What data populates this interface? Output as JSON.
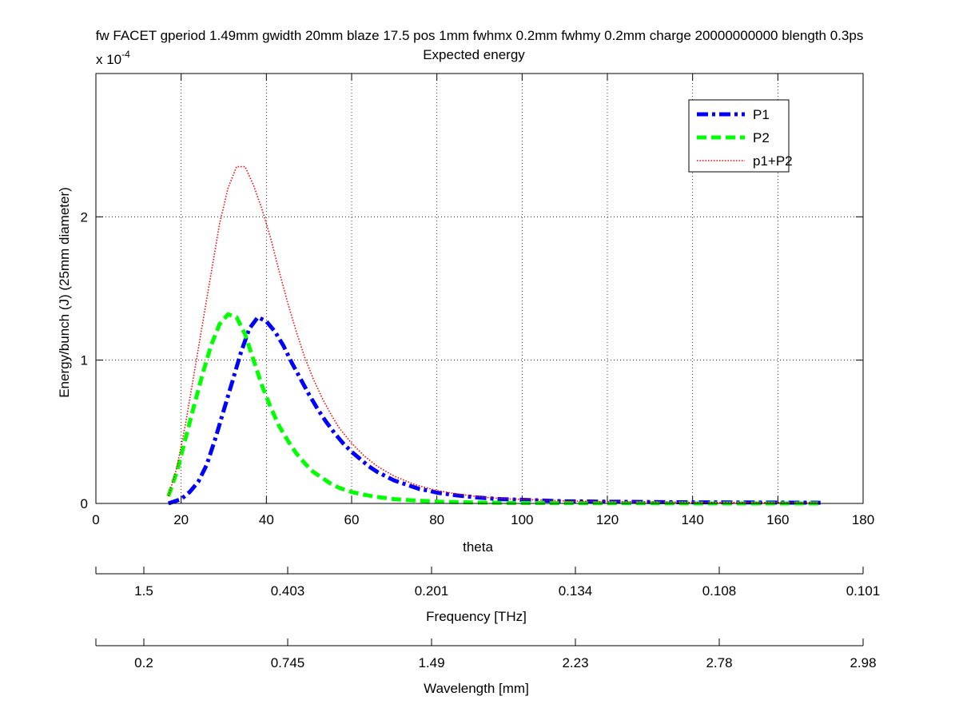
{
  "chart_data": {
    "type": "line",
    "title": "fw FACET gperiod 1.49mm gwidth 20mm blaze 17.5 pos 1mm fwhmx 0.2mm fwhmy 0.2mm charge 20000000000 blength 0.3ps",
    "subtitle": "Expected energy",
    "xlabel": "theta",
    "ylabel": "Energy/bunch (J) (25mm diameter)",
    "y_exponent_label": "x 10",
    "y_exponent_power": "-4",
    "xlim": [
      0,
      180
    ],
    "ylim": [
      0,
      3.0
    ],
    "y_scale_factor": 0.0001,
    "grid": true,
    "grid_style": "dotted",
    "legend_position": "top-right",
    "x_ticks": [
      0,
      20,
      40,
      60,
      80,
      100,
      120,
      140,
      160,
      180
    ],
    "y_ticks": [
      0,
      1,
      2
    ],
    "series": [
      {
        "name": "P1",
        "color": "#0000ff",
        "style": "dashdot",
        "x": [
          17,
          20,
          22,
          24,
          26,
          28,
          30,
          32,
          34,
          36,
          38,
          40,
          42,
          44,
          46,
          48,
          50,
          52,
          54,
          56,
          58,
          60,
          62,
          64,
          66,
          68,
          70,
          72,
          74,
          76,
          78,
          80,
          85,
          90,
          95,
          100,
          105,
          110,
          120,
          130,
          140,
          150,
          160,
          170
        ],
        "y": [
          0.0,
          0.03,
          0.08,
          0.15,
          0.27,
          0.45,
          0.65,
          0.85,
          1.05,
          1.22,
          1.3,
          1.27,
          1.2,
          1.1,
          0.98,
          0.87,
          0.76,
          0.66,
          0.57,
          0.49,
          0.42,
          0.36,
          0.31,
          0.26,
          0.22,
          0.19,
          0.16,
          0.14,
          0.12,
          0.1,
          0.09,
          0.075,
          0.055,
          0.04,
          0.03,
          0.025,
          0.02,
          0.015,
          0.012,
          0.01,
          0.008,
          0.007,
          0.006,
          0.005
        ]
      },
      {
        "name": "P2",
        "color": "#00ff00",
        "style": "dashed",
        "x": [
          17,
          19,
          21,
          23,
          25,
          27,
          29,
          31,
          33,
          35,
          37,
          39,
          41,
          43,
          45,
          47,
          49,
          51,
          53,
          55,
          57,
          60,
          63,
          66,
          70,
          75,
          80,
          85,
          90,
          95,
          100,
          110,
          120,
          130,
          140,
          150,
          160,
          170
        ],
        "y": [
          0.05,
          0.22,
          0.45,
          0.68,
          0.9,
          1.1,
          1.25,
          1.32,
          1.3,
          1.18,
          1.0,
          0.82,
          0.67,
          0.54,
          0.44,
          0.35,
          0.28,
          0.22,
          0.18,
          0.14,
          0.11,
          0.08,
          0.06,
          0.045,
          0.03,
          0.02,
          0.013,
          0.009,
          0.006,
          0.004,
          0.003,
          0.002,
          0.001,
          0.001,
          0.0,
          0.0,
          0.0,
          0.0
        ]
      },
      {
        "name": "p1+P2",
        "color": "#ff0000",
        "style": "dotted",
        "x": [
          17,
          19,
          21,
          23,
          25,
          27,
          29,
          31,
          33,
          35,
          37,
          39,
          41,
          43,
          45,
          47,
          49,
          51,
          53,
          55,
          57,
          60,
          63,
          66,
          70,
          75,
          80,
          85,
          90,
          95,
          100,
          110,
          120,
          130,
          140,
          150,
          160,
          170
        ],
        "y": [
          0.05,
          0.25,
          0.55,
          0.9,
          1.25,
          1.6,
          1.95,
          2.2,
          2.35,
          2.35,
          2.22,
          2.05,
          1.85,
          1.62,
          1.4,
          1.2,
          1.02,
          0.87,
          0.74,
          0.63,
          0.53,
          0.42,
          0.33,
          0.26,
          0.19,
          0.13,
          0.09,
          0.065,
          0.046,
          0.034,
          0.028,
          0.018,
          0.013,
          0.011,
          0.008,
          0.007,
          0.006,
          0.005
        ]
      }
    ],
    "secondary_axes": [
      {
        "label": "Frequency [THz]",
        "tick_labels": [
          "1.5",
          "0.403",
          "0.201",
          "0.134",
          "0.108",
          "0.101"
        ]
      },
      {
        "label": "Wavelength [mm]",
        "tick_labels": [
          "0.2",
          "0.745",
          "1.49",
          "2.23",
          "2.78",
          "2.98"
        ]
      }
    ]
  }
}
